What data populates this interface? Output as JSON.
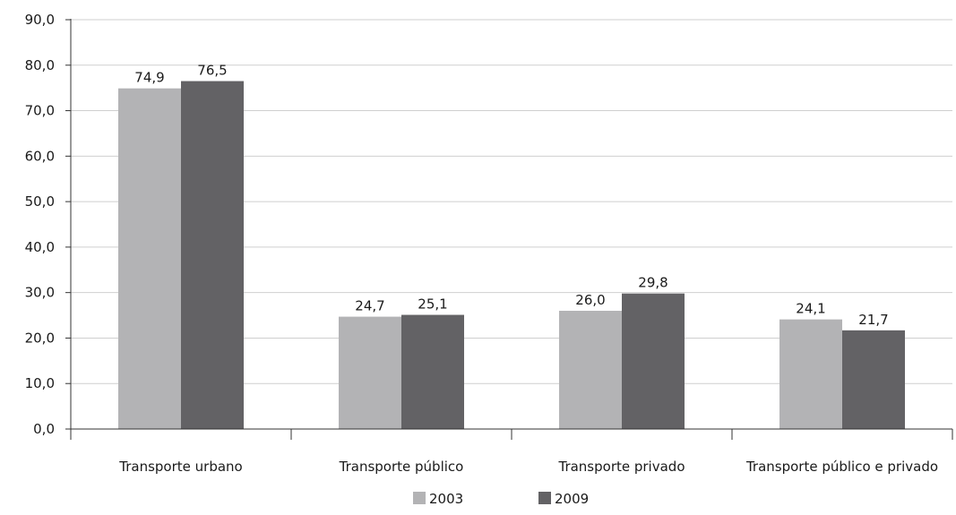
{
  "chart_data": {
    "type": "bar",
    "title": "",
    "xlabel": "",
    "ylabel": "",
    "categories": [
      "Transporte urbano",
      "Transporte público",
      "Transporte privado",
      "Transporte público e privado"
    ],
    "series": [
      {
        "name": "2003",
        "values": [
          74.9,
          24.7,
          26.0,
          24.1
        ],
        "labels": [
          "74,9",
          "24,7",
          "26,0",
          "24,1"
        ],
        "color": "#b3b3b5"
      },
      {
        "name": "2009",
        "values": [
          76.5,
          25.1,
          29.8,
          21.7
        ],
        "labels": [
          "76,5",
          "25,1",
          "29,8",
          "21,7"
        ],
        "color": "#636265"
      }
    ],
    "ylim": [
      0,
      90
    ],
    "yticks": [
      0,
      10,
      20,
      30,
      40,
      50,
      60,
      70,
      80,
      90
    ],
    "ytick_labels": [
      "0,0",
      "10,0",
      "20,0",
      "30,0",
      "40,0",
      "50,0",
      "60,0",
      "70,0",
      "80,0",
      "90,0"
    ],
    "grid": true,
    "legend_position": "bottom-center",
    "colors": {
      "grid": "#cfcfcf",
      "axis": "#333333",
      "text": "#1a1a1a"
    }
  }
}
